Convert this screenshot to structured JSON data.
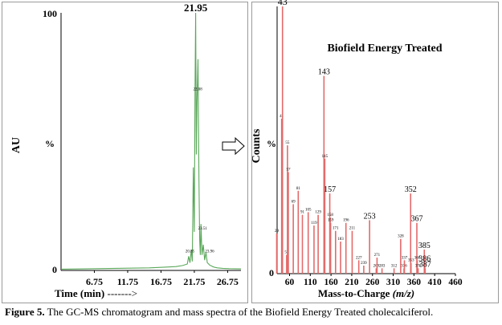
{
  "chart_data": [
    {
      "type": "line",
      "color": "#5aa85a",
      "ylabel": "AU",
      "ylabel_unit": "%",
      "xlabel": "Time (min)",
      "xlabel_arrow": "------->",
      "xlim": [
        1.75,
        28.75
      ],
      "ylim": [
        0,
        100
      ],
      "y_ticks": [
        "100",
        "0"
      ],
      "x_ticks": [
        "6.75",
        "11.75",
        "16.75",
        "21.75",
        "26.75"
      ],
      "x": [
        1.75,
        5,
        10,
        13,
        15,
        17,
        19,
        20,
        20.7,
        20.9,
        21.1,
        21.3,
        21.45,
        21.6,
        21.75,
        21.85,
        21.95,
        22.05,
        22.15,
        22.3,
        22.45,
        22.55,
        22.65,
        22.75,
        22.9,
        23.1,
        23.3,
        23.5,
        23.7,
        23.9,
        24.1,
        24.3,
        24.5,
        24.8,
        25.2,
        26,
        27,
        28.75
      ],
      "y": [
        0.5,
        0.6,
        0.8,
        0.9,
        1.0,
        1.2,
        1.5,
        1.9,
        2.5,
        5.5,
        3.0,
        8.0,
        3.5,
        40.0,
        15.0,
        70.0,
        100.0,
        45.0,
        65.0,
        82.0,
        35.0,
        12.0,
        6.0,
        18.0,
        6.0,
        10.0,
        4.0,
        7.0,
        3.0,
        2.5,
        2.0,
        1.8,
        1.5,
        1.2,
        1.0,
        0.8,
        0.7,
        0.6
      ],
      "peak_labels": [
        {
          "x": 21.95,
          "y": 100,
          "text": "21.95"
        },
        {
          "x": 22.25,
          "y": 69,
          "text": "22.08"
        },
        {
          "x": 21.1,
          "y": 6,
          "text": "20.85"
        },
        {
          "x": 23.0,
          "y": 15,
          "text": "23.51"
        },
        {
          "x": 24.05,
          "y": 6,
          "text": "23.96"
        }
      ]
    },
    {
      "type": "bar",
      "color": "#e46a6a",
      "title": "Biofield Energy Treated",
      "ylabel": "Counts",
      "ylabel_unit": "%",
      "xlabel": "Mass-to-Charge",
      "xlabel_italic": "(m/z)",
      "xlim": [
        30,
        460
      ],
      "ylim": [
        0,
        100
      ],
      "x_ticks": [
        "60",
        "110",
        "160",
        "210",
        "260",
        "310",
        "360",
        "410",
        "460"
      ],
      "y_ticks": [
        "0"
      ],
      "peaks": [
        {
          "mz": 29,
          "value": 15,
          "label": "29"
        },
        {
          "mz": 41,
          "value": 58,
          "label": "41"
        },
        {
          "mz": 43,
          "value": 100,
          "label": "43"
        },
        {
          "mz": 53,
          "value": 7,
          "label": "53"
        },
        {
          "mz": 55,
          "value": 48,
          "label": "55"
        },
        {
          "mz": 57,
          "value": 38,
          "label": "57"
        },
        {
          "mz": 69,
          "value": 26,
          "label": "69"
        },
        {
          "mz": 81,
          "value": 31,
          "label": "81"
        },
        {
          "mz": 91,
          "value": 22,
          "label": "91"
        },
        {
          "mz": 105,
          "value": 23,
          "label": "105"
        },
        {
          "mz": 119,
          "value": 18,
          "label": "119"
        },
        {
          "mz": 129,
          "value": 22,
          "label": "129"
        },
        {
          "mz": 143,
          "value": 74,
          "label": "143"
        },
        {
          "mz": 145,
          "value": 43,
          "label": "145"
        },
        {
          "mz": 157,
          "value": 30,
          "label": "157"
        },
        {
          "mz": 158,
          "value": 21,
          "label": "158"
        },
        {
          "mz": 159,
          "value": 19,
          "label": "159"
        },
        {
          "mz": 171,
          "value": 16,
          "label": "171"
        },
        {
          "mz": 183,
          "value": 12,
          "label": "183"
        },
        {
          "mz": 196,
          "value": 19,
          "label": "196"
        },
        {
          "mz": 211,
          "value": 16,
          "label": "211"
        },
        {
          "mz": 227,
          "value": 5,
          "label": "227"
        },
        {
          "mz": 239,
          "value": 3,
          "label": "239"
        },
        {
          "mz": 253,
          "value": 20,
          "label": "253"
        },
        {
          "mz": 269,
          "value": 2,
          "label": "269"
        },
        {
          "mz": 271,
          "value": 6,
          "label": "271"
        },
        {
          "mz": 283,
          "value": 2,
          "label": "283"
        },
        {
          "mz": 312,
          "value": 2,
          "label": "312"
        },
        {
          "mz": 328,
          "value": 13,
          "label": "328"
        },
        {
          "mz": 336,
          "value": 2,
          "label": "336"
        },
        {
          "mz": 337,
          "value": 5,
          "label": "337"
        },
        {
          "mz": 352,
          "value": 30,
          "label": "352"
        },
        {
          "mz": 353,
          "value": 4,
          "label": "353"
        },
        {
          "mz": 367,
          "value": 19,
          "label": "367"
        },
        {
          "mz": 368,
          "value": 5,
          "label": "368"
        },
        {
          "mz": 370,
          "value": 2,
          "label": "370"
        },
        {
          "mz": 385,
          "value": 9,
          "label": "385"
        },
        {
          "mz": 386,
          "value": 4,
          "label": "386"
        },
        {
          "mz": 387,
          "value": 2,
          "label": "387"
        }
      ]
    }
  ],
  "caption": {
    "label": "Figure 5.",
    "text": " The GC-MS chromatogram and mass spectra of the Biofield Energy Treated cholecalciferol."
  },
  "arrow_icon": "right-arrow-icon"
}
